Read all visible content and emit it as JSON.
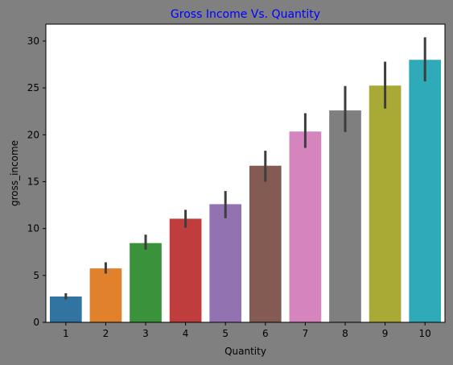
{
  "chart_data": {
    "type": "bar",
    "title": "Gross Income Vs. Quantity",
    "xlabel": "Quantity",
    "ylabel": "gross_income",
    "categories": [
      "1",
      "2",
      "3",
      "4",
      "5",
      "6",
      "7",
      "8",
      "9",
      "10"
    ],
    "values": [
      2.75,
      5.75,
      8.45,
      11.05,
      12.6,
      16.7,
      20.35,
      22.6,
      25.25,
      28.0
    ],
    "error_low": [
      2.45,
      5.2,
      7.75,
      10.1,
      11.1,
      15.0,
      18.6,
      20.3,
      22.8,
      25.7
    ],
    "error_high": [
      3.1,
      6.4,
      9.35,
      12.0,
      14.0,
      18.3,
      22.3,
      25.2,
      27.8,
      30.4
    ],
    "ylim": [
      0,
      31.8
    ],
    "yticks": [
      0,
      5,
      10,
      15,
      20,
      25,
      30
    ],
    "grid": false,
    "colors": {
      "figure_background": "#808080",
      "plot_background": "#ffffff",
      "title": "#0000ff",
      "error_bar": "#3d3d3d",
      "bars": [
        "#3274a1",
        "#e1812c",
        "#3a923a",
        "#c03d3e",
        "#9372b2",
        "#845b53",
        "#d684bd",
        "#7f7f7f",
        "#a9aa35",
        "#2eaab8"
      ]
    }
  }
}
